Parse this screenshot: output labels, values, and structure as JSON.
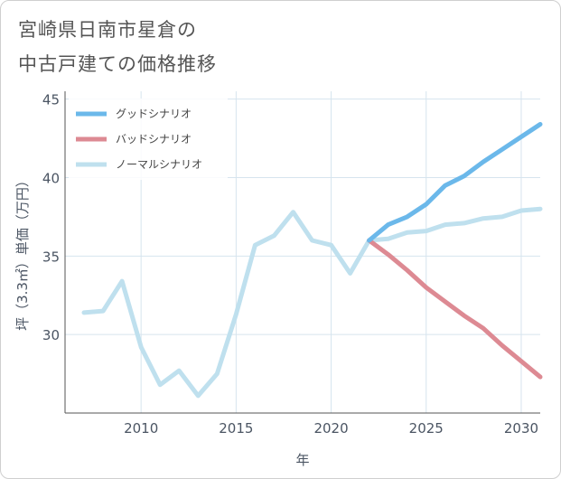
{
  "title_lines": [
    "宮崎県日南市星倉の",
    "中古戸建ての価格推移"
  ],
  "chart_data": {
    "type": "line",
    "title": "宮崎県日南市星倉の中古戸建ての価格推移",
    "xlabel": "年",
    "ylabel": "坪（3.3㎡）単価（万円）",
    "xlim": [
      2006,
      2031
    ],
    "ylim": [
      25,
      45.5
    ],
    "xticks": [
      2010,
      2015,
      2020,
      2025,
      2030
    ],
    "yticks": [
      30,
      35,
      40,
      45
    ],
    "legend_position": "top-left",
    "series": [
      {
        "name": "グッドシナリオ",
        "color": "#6bb8ea",
        "x": [
          2022,
          2023,
          2024,
          2025,
          2026,
          2027,
          2028,
          2029,
          2030,
          2031
        ],
        "y": [
          36.0,
          37.0,
          37.5,
          38.3,
          39.5,
          40.1,
          41.0,
          41.8,
          42.6,
          43.4
        ]
      },
      {
        "name": "バッドシナリオ",
        "color": "#dd8a93",
        "x": [
          2022,
          2023,
          2024,
          2025,
          2026,
          2027,
          2028,
          2029,
          2030,
          2031
        ],
        "y": [
          36.0,
          35.1,
          34.1,
          33.0,
          32.1,
          31.2,
          30.4,
          29.3,
          28.3,
          27.3
        ]
      },
      {
        "name": "ノーマルシナリオ",
        "color": "#bfe0ee",
        "x": [
          2007,
          2008,
          2009,
          2010,
          2011,
          2012,
          2013,
          2014,
          2015,
          2016,
          2017,
          2018,
          2019,
          2020,
          2021,
          2022,
          2023,
          2024,
          2025,
          2026,
          2027,
          2028,
          2029,
          2030,
          2031
        ],
        "y": [
          31.4,
          31.5,
          33.4,
          29.2,
          26.8,
          27.7,
          26.1,
          27.5,
          31.3,
          35.7,
          36.3,
          37.8,
          36.0,
          35.7,
          33.9,
          36.0,
          36.1,
          36.5,
          36.6,
          37.0,
          37.1,
          37.4,
          37.5,
          37.9,
          38.0
        ]
      }
    ]
  }
}
